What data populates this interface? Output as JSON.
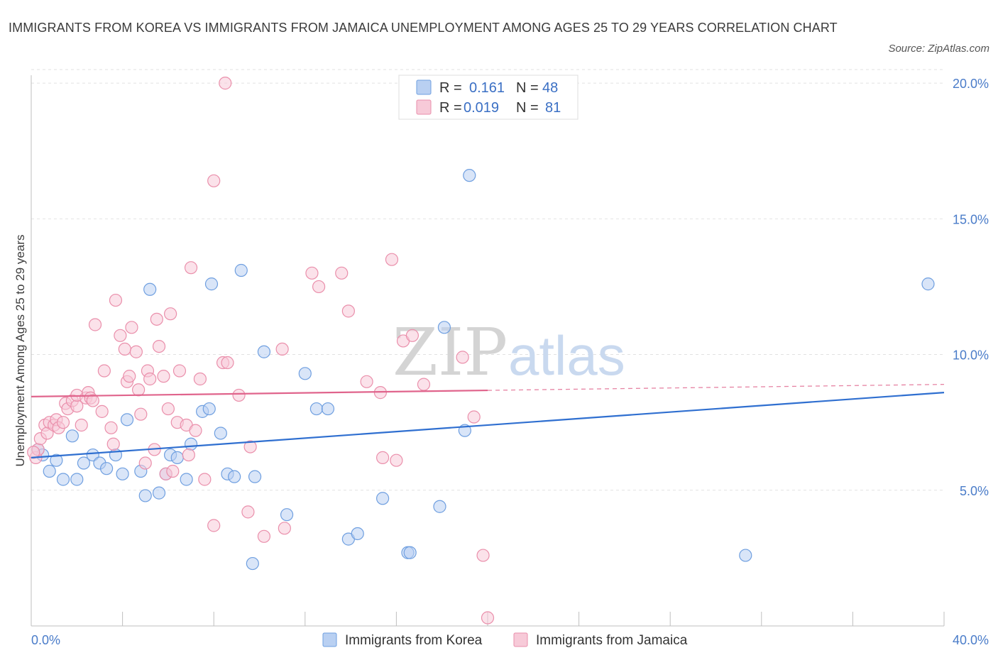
{
  "header": {
    "title": "IMMIGRANTS FROM KOREA VS IMMIGRANTS FROM JAMAICA UNEMPLOYMENT AMONG AGES 25 TO 29 YEARS CORRELATION CHART",
    "source": "Source: ZipAtlas.com"
  },
  "watermark": {
    "zip": "ZIP",
    "atlas": "atlas"
  },
  "chart_data": {
    "type": "scatter",
    "title": "IMMIGRANTS FROM KOREA VS IMMIGRANTS FROM JAMAICA UNEMPLOYMENT AMONG AGES 25 TO 29 YEARS CORRELATION CHART",
    "xlabel": "",
    "ylabel": "Unemployment Among Ages 25 to 29 years",
    "xlim": [
      0,
      40
    ],
    "ylim": [
      0,
      20.5
    ],
    "x_tick_labels": [
      "0.0%",
      "40.0%"
    ],
    "y_ticks": [
      5,
      10,
      15,
      20
    ],
    "y_tick_labels": [
      "5.0%",
      "10.0%",
      "15.0%",
      "20.0%"
    ],
    "grid": true,
    "legend": {
      "placement": "top-center",
      "r_label": "R =",
      "n_label": "N =",
      "entries": [
        {
          "series": "Immigrants from Korea",
          "r": "0.161",
          "n": "48"
        },
        {
          "series": "Immigrants from Jamaica",
          "r": "0.019",
          "n": "81"
        }
      ]
    },
    "series": [
      {
        "name": "Immigrants from Korea",
        "color": "#6f9fe0",
        "fill": "#b9d0f2",
        "line_color": "#2f6fd0",
        "trend": {
          "x": [
            0,
            40
          ],
          "y": [
            6.2,
            8.6
          ]
        },
        "points": [
          [
            0.3,
            6.5
          ],
          [
            0.5,
            6.3
          ],
          [
            0.8,
            5.7
          ],
          [
            1.1,
            6.1
          ],
          [
            1.4,
            5.4
          ],
          [
            1.8,
            7.0
          ],
          [
            2.0,
            5.4
          ],
          [
            2.3,
            6.0
          ],
          [
            2.7,
            6.3
          ],
          [
            3.0,
            6.0
          ],
          [
            3.3,
            5.8
          ],
          [
            3.7,
            6.3
          ],
          [
            4.0,
            5.6
          ],
          [
            4.2,
            7.6
          ],
          [
            4.8,
            5.7
          ],
          [
            5.0,
            4.8
          ],
          [
            5.2,
            12.4
          ],
          [
            5.6,
            4.9
          ],
          [
            5.9,
            5.6
          ],
          [
            6.1,
            6.3
          ],
          [
            6.4,
            6.2
          ],
          [
            6.8,
            5.4
          ],
          [
            7.0,
            6.7
          ],
          [
            7.5,
            7.9
          ],
          [
            7.8,
            8.0
          ],
          [
            7.9,
            12.6
          ],
          [
            8.3,
            7.1
          ],
          [
            8.6,
            5.6
          ],
          [
            8.9,
            5.5
          ],
          [
            9.2,
            13.1
          ],
          [
            9.7,
            2.3
          ],
          [
            9.8,
            5.5
          ],
          [
            10.2,
            10.1
          ],
          [
            11.2,
            4.1
          ],
          [
            12.0,
            9.3
          ],
          [
            12.5,
            8.0
          ],
          [
            13.0,
            8.0
          ],
          [
            13.9,
            3.2
          ],
          [
            14.3,
            3.4
          ],
          [
            15.4,
            4.7
          ],
          [
            16.5,
            2.7
          ],
          [
            16.6,
            2.7
          ],
          [
            17.9,
            4.4
          ],
          [
            18.1,
            11.0
          ],
          [
            19.0,
            7.2
          ],
          [
            19.2,
            16.6
          ],
          [
            31.3,
            2.6
          ],
          [
            39.3,
            12.6
          ]
        ]
      },
      {
        "name": "Immigrants from Jamaica",
        "color": "#ea8fab",
        "fill": "#f7cad8",
        "line_color": "#e0648c",
        "trend": {
          "x": [
            0,
            20
          ],
          "y": [
            8.45,
            8.68
          ]
        },
        "trend_dashed": {
          "x": [
            20,
            40
          ],
          "y": [
            8.68,
            8.9
          ]
        },
        "points": [
          [
            0.2,
            6.2
          ],
          [
            0.3,
            6.5
          ],
          [
            0.4,
            6.9
          ],
          [
            0.6,
            7.4
          ],
          [
            0.7,
            7.1
          ],
          [
            0.8,
            7.5
          ],
          [
            1.0,
            7.4
          ],
          [
            1.1,
            7.6
          ],
          [
            1.2,
            7.3
          ],
          [
            1.4,
            7.5
          ],
          [
            1.5,
            8.2
          ],
          [
            1.6,
            8.0
          ],
          [
            1.8,
            8.3
          ],
          [
            2.0,
            8.1
          ],
          [
            2.0,
            8.5
          ],
          [
            2.2,
            7.4
          ],
          [
            2.4,
            8.4
          ],
          [
            2.5,
            8.6
          ],
          [
            2.6,
            8.4
          ],
          [
            2.7,
            8.3
          ],
          [
            2.8,
            11.1
          ],
          [
            3.1,
            7.9
          ],
          [
            3.2,
            9.4
          ],
          [
            3.5,
            7.3
          ],
          [
            3.6,
            6.7
          ],
          [
            3.7,
            12.0
          ],
          [
            3.9,
            10.7
          ],
          [
            4.1,
            10.2
          ],
          [
            4.2,
            9.0
          ],
          [
            4.3,
            9.2
          ],
          [
            4.4,
            11.0
          ],
          [
            4.6,
            10.1
          ],
          [
            4.7,
            8.7
          ],
          [
            4.8,
            7.8
          ],
          [
            5.0,
            6.0
          ],
          [
            5.1,
            9.4
          ],
          [
            5.2,
            9.1
          ],
          [
            5.4,
            6.5
          ],
          [
            5.5,
            11.3
          ],
          [
            5.6,
            10.3
          ],
          [
            5.8,
            9.2
          ],
          [
            5.9,
            5.6
          ],
          [
            6.0,
            8.0
          ],
          [
            6.1,
            11.5
          ],
          [
            6.2,
            5.7
          ],
          [
            6.4,
            7.5
          ],
          [
            6.5,
            9.4
          ],
          [
            6.8,
            7.4
          ],
          [
            6.9,
            6.3
          ],
          [
            7.0,
            13.2
          ],
          [
            7.2,
            7.2
          ],
          [
            7.4,
            9.1
          ],
          [
            7.6,
            5.4
          ],
          [
            8.0,
            16.4
          ],
          [
            8.0,
            3.7
          ],
          [
            8.4,
            9.7
          ],
          [
            8.5,
            20.0
          ],
          [
            8.6,
            9.7
          ],
          [
            9.1,
            8.5
          ],
          [
            9.5,
            4.2
          ],
          [
            9.6,
            6.6
          ],
          [
            10.2,
            3.3
          ],
          [
            11.0,
            10.2
          ],
          [
            11.1,
            3.6
          ],
          [
            12.3,
            13.0
          ],
          [
            12.6,
            12.5
          ],
          [
            13.6,
            13.0
          ],
          [
            13.9,
            11.6
          ],
          [
            14.7,
            9.0
          ],
          [
            15.3,
            8.6
          ],
          [
            15.4,
            6.2
          ],
          [
            15.8,
            13.5
          ],
          [
            16.0,
            6.1
          ],
          [
            16.3,
            10.5
          ],
          [
            16.7,
            10.7
          ],
          [
            17.2,
            8.9
          ],
          [
            18.9,
            9.9
          ],
          [
            19.4,
            7.7
          ],
          [
            19.8,
            2.6
          ],
          [
            20.0,
            0.3
          ],
          [
            0.1,
            6.4
          ]
        ]
      }
    ]
  },
  "bottom_legend": [
    {
      "label": "Immigrants from Korea"
    },
    {
      "label": "Immigrants from Jamaica"
    }
  ]
}
